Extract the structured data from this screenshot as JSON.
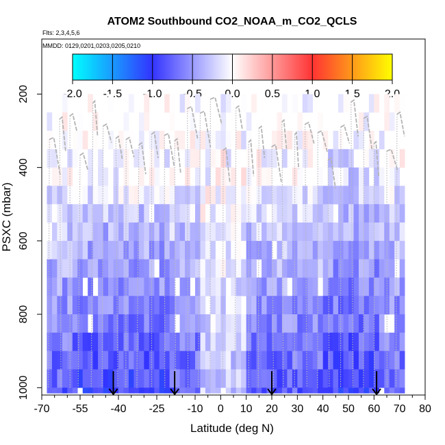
{
  "chart_data": {
    "type": "heatmap",
    "title": "ATOM2 Southbound CO2_NOAA_m_CO2_QCLS",
    "subtitle_flights": "Flts: 2,3,4,5,6",
    "subtitle_dates": "MMDD: 0129,0201,0203,0205,0210",
    "xlabel": "Latitude (deg N)",
    "ylabel": "PSXC (mbar)",
    "xlim": [
      -70,
      80
    ],
    "ylim": [
      1020,
      50
    ],
    "x_ticks": [
      -70,
      -55,
      -40,
      -25,
      -10,
      0,
      10,
      20,
      30,
      40,
      50,
      60,
      70,
      80
    ],
    "x_minor_ticks": [
      -65,
      -60,
      -50,
      -45,
      -35,
      -30,
      -20,
      -15,
      -5,
      5,
      15,
      25,
      35,
      45,
      55,
      65,
      75
    ],
    "y_ticks": [
      200,
      400,
      600,
      800,
      1000
    ],
    "colorbar": {
      "min": -2.0,
      "max": 2.0,
      "ticks": [
        "-2.0",
        "-1.5",
        "-1.0",
        "-0.5",
        "0.0",
        "0.5",
        "1.0",
        "1.5",
        "2.0"
      ],
      "colors": {
        "low": "#00ffff",
        "mid_low": "#3333ff",
        "zero": "#ffffff",
        "mid_high": "#ff3333",
        "high": "#ffff00"
      }
    },
    "arrows_latitude": [
      -42,
      -18,
      20,
      61
    ],
    "grid": {
      "lat_min": -68,
      "lat_max": 72,
      "lat_step": 2,
      "pressure_bins": [
        [
          200,
          250
        ],
        [
          250,
          300
        ],
        [
          300,
          350
        ],
        [
          350,
          400
        ],
        [
          400,
          450
        ],
        [
          450,
          500
        ],
        [
          500,
          550
        ],
        [
          550,
          600
        ],
        [
          600,
          650
        ],
        [
          650,
          700
        ],
        [
          700,
          750
        ],
        [
          750,
          800
        ],
        [
          800,
          850
        ],
        [
          850,
          900
        ],
        [
          900,
          950
        ],
        [
          950,
          1000
        ],
        [
          1000,
          1015
        ]
      ]
    },
    "profiles_latitude": [
      -67,
      -63,
      -59,
      -55,
      -50,
      -46,
      -41,
      -37,
      -32,
      -27,
      -22,
      -18,
      -13,
      -8,
      -4,
      1,
      6,
      11,
      15,
      20,
      24,
      29,
      33,
      38,
      42,
      47,
      51,
      56,
      60,
      65,
      69
    ]
  }
}
